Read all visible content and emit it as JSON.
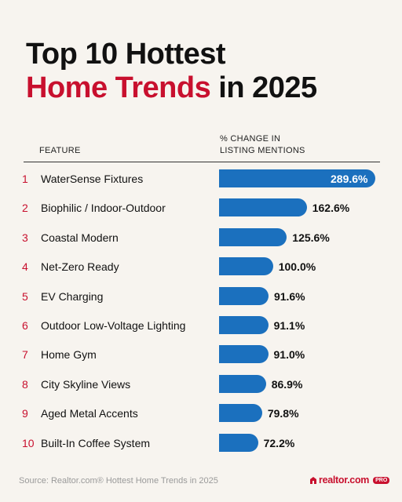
{
  "title": {
    "line1": "Top 10 Hottest",
    "highlight": "Home Trends",
    "rest": " in 2025"
  },
  "headers": {
    "feature": "FEATURE",
    "change_line1": "% CHANGE IN",
    "change_line2": "LISTING MENTIONS"
  },
  "source": "Source: Realtor.com® Hottest Home Trends in 2025",
  "brand": {
    "name": "realtor.com",
    "badge": "PRO"
  },
  "colors": {
    "accent": "#c8102e",
    "bar": "#1b70be",
    "background": "#f7f4ef"
  },
  "chart_data": {
    "type": "bar",
    "orientation": "horizontal",
    "ranks": [
      "1",
      "2",
      "3",
      "4",
      "5",
      "6",
      "7",
      "8",
      "9",
      "10"
    ],
    "categories": [
      "WaterSense Fixtures",
      "Biophilic / Indoor-Outdoor",
      "Coastal Modern",
      "Net-Zero Ready",
      "EV Charging",
      "Outdoor Low-Voltage Lighting",
      "Home Gym",
      "City Skyline Views",
      "Aged Metal Accents",
      "Built-In Coffee System"
    ],
    "values": [
      289.6,
      162.6,
      125.6,
      100.0,
      91.6,
      91.1,
      91.0,
      86.9,
      79.8,
      72.2
    ],
    "labels": [
      "289.6%",
      "162.6%",
      "125.6%",
      "100.0%",
      "91.6%",
      "91.1%",
      "91.0%",
      "86.9%",
      "79.8%",
      "72.2%"
    ],
    "xlim": [
      0,
      289.6
    ],
    "grid": false,
    "legend": "none"
  }
}
